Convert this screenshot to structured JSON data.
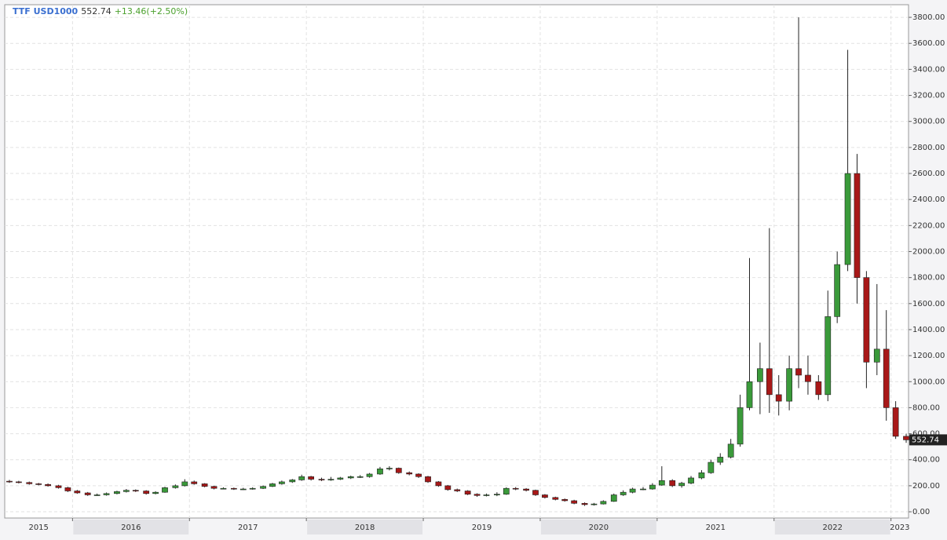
{
  "header": {
    "symbol": "TTF USD1000",
    "last": "552.74",
    "change": "+13.46(+2.50%)"
  },
  "chart_data": {
    "type": "candlestick",
    "x": [
      2015.46,
      2015.54,
      2015.63,
      2015.71,
      2015.79,
      2015.88,
      2015.96,
      2016.04,
      2016.13,
      2016.21,
      2016.29,
      2016.38,
      2016.46,
      2016.54,
      2016.63,
      2016.71,
      2016.79,
      2016.88,
      2016.96,
      2017.04,
      2017.13,
      2017.21,
      2017.29,
      2017.38,
      2017.46,
      2017.54,
      2017.63,
      2017.71,
      2017.79,
      2017.88,
      2017.96,
      2018.04,
      2018.13,
      2018.21,
      2018.29,
      2018.38,
      2018.46,
      2018.54,
      2018.63,
      2018.71,
      2018.79,
      2018.88,
      2018.96,
      2019.04,
      2019.13,
      2019.21,
      2019.29,
      2019.38,
      2019.46,
      2019.54,
      2019.63,
      2019.71,
      2019.79,
      2019.88,
      2019.96,
      2020.04,
      2020.13,
      2020.21,
      2020.29,
      2020.38,
      2020.46,
      2020.54,
      2020.63,
      2020.71,
      2020.79,
      2020.88,
      2020.96,
      2021.04,
      2021.13,
      2021.21,
      2021.29,
      2021.38,
      2021.46,
      2021.54,
      2021.63,
      2021.71,
      2021.79,
      2021.88,
      2021.96,
      2022.04,
      2022.13,
      2022.21,
      2022.29,
      2022.38,
      2022.46,
      2022.54,
      2022.63,
      2022.71,
      2022.79,
      2022.88,
      2022.96,
      2023.04,
      2023.13
    ],
    "open": [
      235,
      230,
      225,
      215,
      210,
      200,
      185,
      160,
      145,
      130,
      130,
      140,
      155,
      165,
      160,
      140,
      150,
      185,
      200,
      230,
      215,
      195,
      180,
      180,
      175,
      175,
      180,
      195,
      215,
      230,
      245,
      270,
      250,
      245,
      250,
      260,
      270,
      270,
      290,
      330,
      335,
      300,
      290,
      270,
      230,
      200,
      170,
      160,
      135,
      125,
      130,
      135,
      180,
      175,
      165,
      130,
      110,
      95,
      85,
      65,
      55,
      60,
      80,
      130,
      150,
      175,
      175,
      205,
      240,
      200,
      220,
      260,
      300,
      380,
      420,
      520,
      800,
      1000,
      1100,
      900,
      850,
      1100,
      1050,
      1000,
      900,
      1500,
      1900,
      2600,
      1800,
      1150,
      1250,
      800,
      580
    ],
    "high": [
      245,
      238,
      232,
      222,
      218,
      207,
      192,
      168,
      152,
      140,
      148,
      162,
      175,
      172,
      166,
      158,
      192,
      210,
      250,
      240,
      220,
      200,
      188,
      186,
      184,
      188,
      202,
      222,
      240,
      252,
      285,
      276,
      262,
      268,
      268,
      278,
      282,
      298,
      345,
      350,
      340,
      310,
      296,
      276,
      236,
      206,
      178,
      166,
      142,
      140,
      150,
      188,
      190,
      182,
      170,
      136,
      116,
      102,
      92,
      72,
      68,
      88,
      140,
      165,
      185,
      190,
      220,
      350,
      250,
      230,
      275,
      320,
      400,
      450,
      560,
      900,
      1950,
      1300,
      2180,
      1050,
      1200,
      3800,
      1200,
      1050,
      1700,
      2000,
      3550,
      2750,
      1850,
      1750,
      1550,
      850,
      600
    ],
    "low": [
      222,
      218,
      208,
      203,
      193,
      178,
      152,
      138,
      122,
      122,
      124,
      134,
      148,
      152,
      132,
      134,
      146,
      178,
      194,
      208,
      188,
      172,
      172,
      168,
      168,
      170,
      175,
      190,
      208,
      222,
      238,
      240,
      236,
      238,
      244,
      252,
      260,
      262,
      284,
      318,
      292,
      280,
      260,
      222,
      192,
      162,
      152,
      128,
      115,
      118,
      120,
      130,
      166,
      156,
      122,
      102,
      88,
      78,
      58,
      45,
      48,
      56,
      76,
      122,
      142,
      166,
      170,
      200,
      190,
      185,
      212,
      250,
      292,
      360,
      410,
      500,
      780,
      750,
      760,
      740,
      780,
      950,
      900,
      860,
      850,
      1450,
      1850,
      1600,
      950,
      1050,
      700,
      560,
      530
    ],
    "close": [
      230,
      225,
      215,
      210,
      200,
      185,
      160,
      145,
      130,
      130,
      140,
      155,
      165,
      160,
      140,
      150,
      185,
      200,
      230,
      215,
      195,
      180,
      180,
      175,
      175,
      180,
      195,
      215,
      230,
      245,
      270,
      250,
      245,
      250,
      260,
      270,
      270,
      290,
      330,
      335,
      300,
      290,
      270,
      230,
      200,
      170,
      160,
      135,
      125,
      130,
      135,
      180,
      175,
      165,
      130,
      110,
      95,
      85,
      65,
      55,
      60,
      80,
      130,
      150,
      175,
      175,
      205,
      240,
      200,
      220,
      260,
      300,
      380,
      420,
      520,
      800,
      1000,
      1100,
      900,
      850,
      1100,
      1050,
      1000,
      900,
      1500,
      1900,
      2600,
      1800,
      1150,
      1250,
      800,
      580,
      552.74
    ],
    "last_label": "552.74",
    "up_color": "#3a9a3a",
    "down_color": "#a81818",
    "xlim": [
      2015.42,
      2023.15
    ],
    "xticks": [
      {
        "value": 2015,
        "label": "2015"
      },
      {
        "value": 2016,
        "label": "2016"
      },
      {
        "value": 2017,
        "label": "2017"
      },
      {
        "value": 2018,
        "label": "2018"
      },
      {
        "value": 2019,
        "label": "2019"
      },
      {
        "value": 2020,
        "label": "2020"
      },
      {
        "value": 2021,
        "label": "2021"
      },
      {
        "value": 2022,
        "label": "2022"
      },
      {
        "value": 2023,
        "label": "2023"
      }
    ],
    "ylim": [
      -48,
      3897
    ],
    "yticks": [
      {
        "value": 0,
        "label": "0.00"
      },
      {
        "value": 200,
        "label": "200.00"
      },
      {
        "value": 400,
        "label": "400.00"
      },
      {
        "value": 600,
        "label": "600.00"
      },
      {
        "value": 800,
        "label": "800.00"
      },
      {
        "value": 1000,
        "label": "1000.00"
      },
      {
        "value": 1200,
        "label": "1200.00"
      },
      {
        "value": 1400,
        "label": "1400.00"
      },
      {
        "value": 1600,
        "label": "1600.00"
      },
      {
        "value": 1800,
        "label": "1800.00"
      },
      {
        "value": 2000,
        "label": "2000.00"
      },
      {
        "value": 2200,
        "label": "2200.00"
      },
      {
        "value": 2400,
        "label": "2400.00"
      },
      {
        "value": 2600,
        "label": "2600.00"
      },
      {
        "value": 2800,
        "label": "2800.00"
      },
      {
        "value": 3000,
        "label": "3000.00"
      },
      {
        "value": 3200,
        "label": "3200.00"
      },
      {
        "value": 3400,
        "label": "3400.00"
      },
      {
        "value": 3600,
        "label": "3600.00"
      },
      {
        "value": 3800,
        "label": "3800.00"
      }
    ],
    "grid": true
  }
}
